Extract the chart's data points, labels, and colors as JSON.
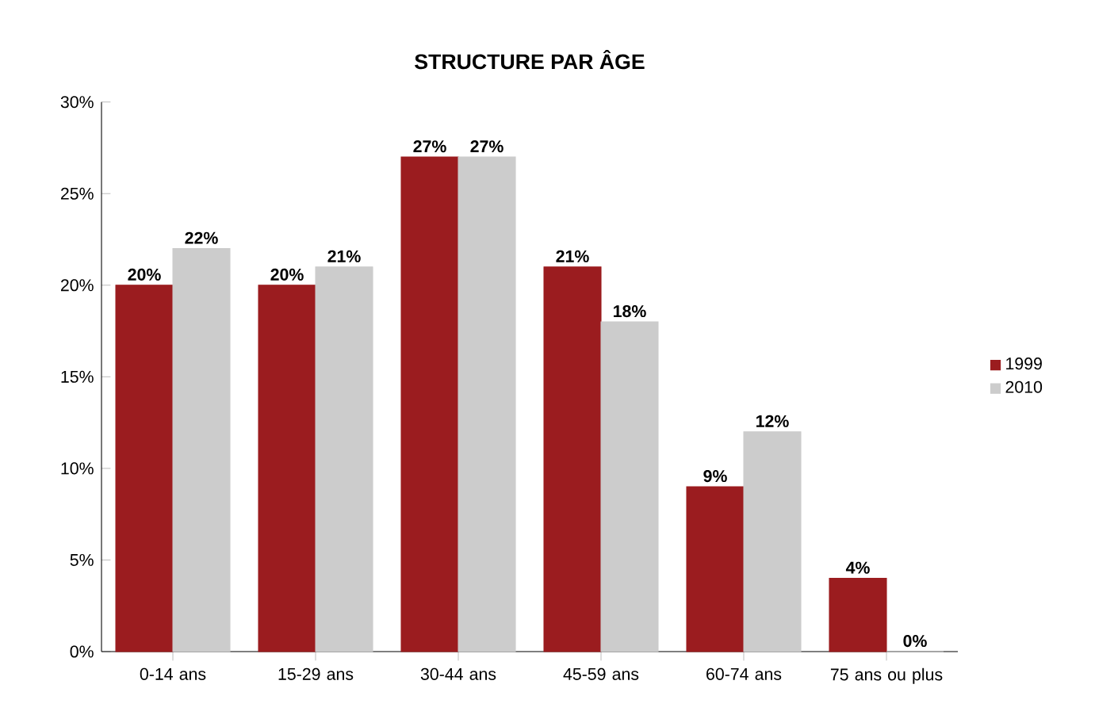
{
  "chart_data": {
    "type": "bar",
    "title": "STRUCTURE PAR ÂGE",
    "categories": [
      "0-14 ans",
      "15-29 ans",
      "30-44 ans",
      "45-59 ans",
      "60-74 ans",
      "75 ans ou plus"
    ],
    "series": [
      {
        "name": "1999",
        "color": "#9b1c1f",
        "values": [
          20,
          20,
          27,
          21,
          9,
          4
        ],
        "value_labels": [
          "20%",
          "20%",
          "27%",
          "21%",
          "9%",
          "4%"
        ]
      },
      {
        "name": "2010",
        "color": "#cccccc",
        "values": [
          22,
          21,
          27,
          18,
          12,
          0
        ],
        "value_labels": [
          "22%",
          "21%",
          "27%",
          "18%",
          "12%",
          "0%"
        ]
      }
    ],
    "ylim": [
      0,
      30
    ],
    "yticks": [
      {
        "value": 0,
        "label": "0%"
      },
      {
        "value": 5,
        "label": "5%"
      },
      {
        "value": 10,
        "label": "10%"
      },
      {
        "value": 15,
        "label": "15%"
      },
      {
        "value": 20,
        "label": "20%"
      },
      {
        "value": 25,
        "label": "25%"
      },
      {
        "value": 30,
        "label": "30%"
      }
    ],
    "grid": false,
    "legend": "right"
  }
}
